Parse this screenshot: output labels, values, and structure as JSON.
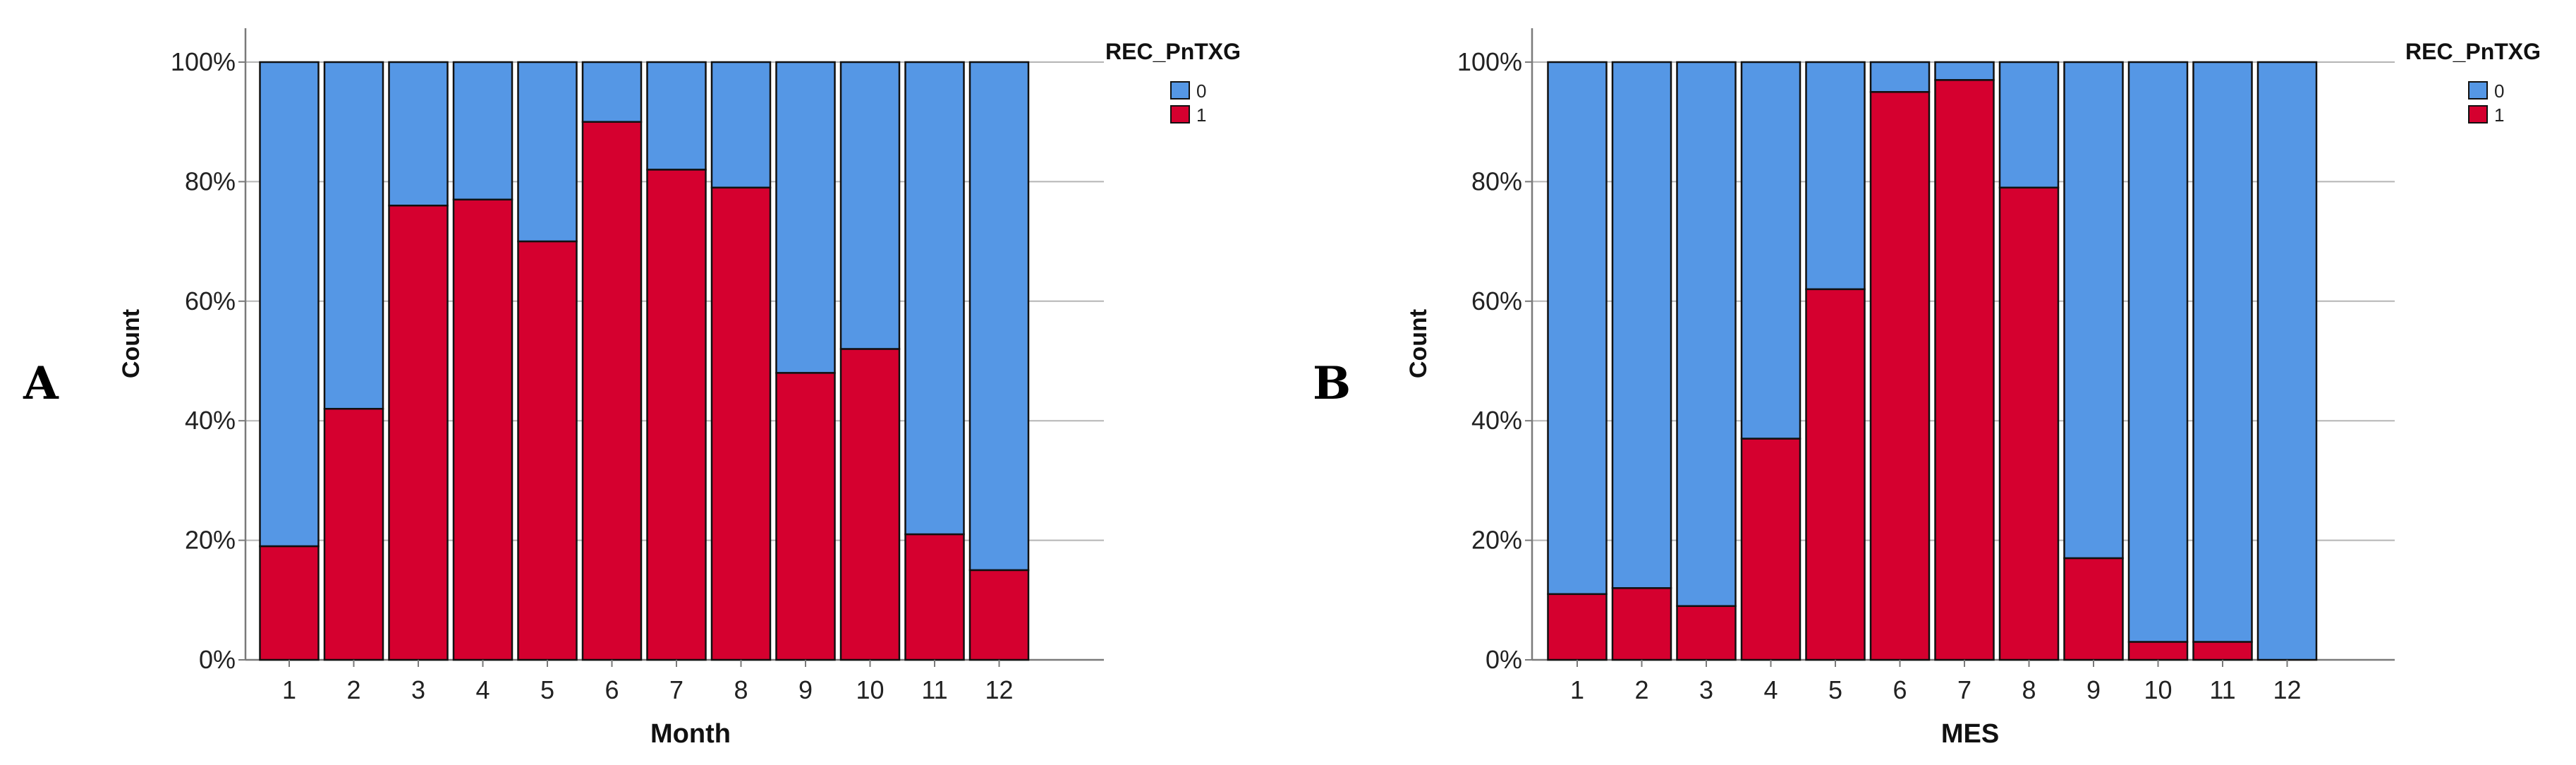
{
  "colors": {
    "cat0": "#5597E5",
    "cat1": "#D5002F",
    "grid": "#b5b5b5",
    "axis": "#7a7a7a"
  },
  "chart_data": [
    {
      "panel": "A",
      "type": "bar",
      "stacked": true,
      "percent": true,
      "categories": [
        "1",
        "2",
        "3",
        "4",
        "5",
        "6",
        "7",
        "8",
        "9",
        "10",
        "11",
        "12"
      ],
      "series": [
        {
          "name": "1",
          "values": [
            19,
            42,
            76,
            77,
            70,
            90,
            82,
            79,
            48,
            52,
            21,
            15
          ]
        },
        {
          "name": "0",
          "values": [
            81,
            58,
            24,
            23,
            30,
            10,
            18,
            21,
            52,
            48,
            79,
            85
          ]
        }
      ],
      "xlabel": "Month",
      "ylabel": "Count",
      "yticks": [
        "0%",
        "20%",
        "40%",
        "60%",
        "80%",
        "100%"
      ],
      "ylim": [
        0,
        100
      ],
      "legend_title": "REC_PnTXG",
      "legend_entries": [
        "0",
        "1"
      ]
    },
    {
      "panel": "B",
      "type": "bar",
      "stacked": true,
      "percent": true,
      "categories": [
        "1",
        "2",
        "3",
        "4",
        "5",
        "6",
        "7",
        "8",
        "9",
        "10",
        "11",
        "12"
      ],
      "series": [
        {
          "name": "1",
          "values": [
            11,
            12,
            9,
            37,
            62,
            95,
            97,
            79,
            17,
            3,
            3,
            0
          ]
        },
        {
          "name": "0",
          "values": [
            89,
            88,
            91,
            63,
            38,
            5,
            3,
            21,
            83,
            97,
            97,
            100
          ]
        }
      ],
      "xlabel": "MES",
      "ylabel": "Count",
      "yticks": [
        "0%",
        "20%",
        "40%",
        "60%",
        "80%",
        "100%"
      ],
      "ylim": [
        0,
        100
      ],
      "legend_title": "REC_PnTXG",
      "legend_entries": [
        "0",
        "1"
      ]
    }
  ]
}
